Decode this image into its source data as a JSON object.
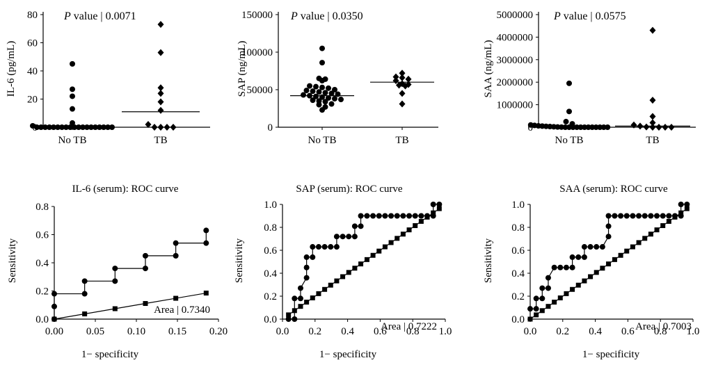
{
  "chart_data": [
    {
      "type": "scatter",
      "panel": "scatter-il6",
      "annotation": "value | 0.0071",
      "annotation_italic": "P",
      "ylabel": "IL-6 (pg/mL)",
      "ylim": [
        0,
        80
      ],
      "yticks": [
        0,
        20,
        40,
        60,
        80
      ],
      "categories": [
        "No TB",
        "TB"
      ],
      "groups": [
        {
          "category": "No TB",
          "marker": "circle",
          "median": 0,
          "values": [
            45,
            27,
            22,
            13,
            3,
            1,
            0,
            0,
            0,
            0,
            0,
            0,
            0,
            0,
            0,
            0,
            0,
            0,
            0,
            0,
            0,
            0,
            0,
            0,
            0
          ]
        },
        {
          "category": "TB",
          "marker": "diamond",
          "median": 11,
          "values": [
            73,
            53,
            28,
            24,
            18,
            12,
            2,
            0,
            0,
            0,
            0
          ]
        }
      ]
    },
    {
      "type": "scatter",
      "panel": "scatter-sap",
      "annotation": "value | 0.0350",
      "annotation_italic": "P",
      "ylabel": "SAP (ng/mL)",
      "ylim": [
        0,
        150000
      ],
      "yticks": [
        0,
        50000,
        100000,
        150000
      ],
      "categories": [
        "No TB",
        "TB"
      ],
      "groups": [
        {
          "category": "No TB",
          "marker": "circle",
          "median": 42000,
          "values": [
            105000,
            86000,
            65000,
            64000,
            62000,
            55000,
            54000,
            53000,
            52000,
            50000,
            49000,
            48000,
            47000,
            46000,
            45000,
            44000,
            43000,
            42000,
            41000,
            40000,
            39000,
            38000,
            37000,
            36000,
            35000,
            34000,
            31000,
            30000,
            27000,
            23000
          ]
        },
        {
          "category": "TB",
          "marker": "diamond",
          "median": 60000,
          "values": [
            72000,
            67000,
            66000,
            64000,
            62000,
            58000,
            57000,
            56000,
            55000,
            45000,
            31000
          ]
        }
      ]
    },
    {
      "type": "scatter",
      "panel": "scatter-saa",
      "annotation": "value | 0.0575",
      "annotation_italic": "P",
      "ylabel": "SAA (ng/mL)",
      "ylim": [
        0,
        5000000
      ],
      "yticks": [
        0,
        1000000,
        2000000,
        3000000,
        4000000,
        5000000
      ],
      "categories": [
        "No TB",
        "TB"
      ],
      "groups": [
        {
          "category": "No TB",
          "marker": "circle",
          "median": 0,
          "values": [
            1950000,
            700000,
            250000,
            150000,
            100000,
            80000,
            60000,
            50000,
            40000,
            30000,
            20000,
            10000,
            5000,
            0,
            0,
            0,
            0,
            0,
            0,
            0,
            0,
            0,
            0,
            0,
            0
          ]
        },
        {
          "category": "TB",
          "marker": "diamond",
          "median": 50000,
          "values": [
            4300000,
            1200000,
            480000,
            200000,
            100000,
            50000,
            10000,
            0,
            0,
            0,
            0
          ]
        }
      ]
    },
    {
      "type": "line",
      "panel": "roc-il6",
      "title": "IL-6 (serum): ROC curve",
      "xlabel": "1− specificity",
      "ylabel": "Sensitivity",
      "xlim": [
        0,
        0.2
      ],
      "ylim": [
        0,
        0.8
      ],
      "xticks": [
        "0.00",
        "0.05",
        "0.10",
        "0.15",
        "0.20"
      ],
      "yticks": [
        "0.0",
        "0.2",
        "0.4",
        "0.6",
        "0.8"
      ],
      "area_label": "Area | 0.7340",
      "series": [
        {
          "marker": "circle",
          "x": [
            0,
            0,
            0,
            0.037,
            0.037,
            0.074,
            0.074,
            0.111,
            0.111,
            0.148,
            0.148,
            0.185,
            0.185
          ],
          "y": [
            0,
            0.09,
            0.18,
            0.18,
            0.27,
            0.27,
            0.36,
            0.36,
            0.45,
            0.45,
            0.54,
            0.54,
            0.63
          ]
        },
        {
          "marker": "square",
          "x": [
            0,
            0.037,
            0.074,
            0.111,
            0.148,
            0.185
          ],
          "y": [
            0,
            0.037,
            0.074,
            0.111,
            0.148,
            0.185
          ]
        }
      ]
    },
    {
      "type": "line",
      "panel": "roc-sap",
      "title": "SAP (serum): ROC curve",
      "xlabel": "1− specificity",
      "ylabel": "Sensitivity",
      "xlim": [
        0,
        1
      ],
      "ylim": [
        0,
        1
      ],
      "xticks": [
        "0.0",
        "0.2",
        "0.4",
        "0.6",
        "0.8",
        "1.0"
      ],
      "yticks": [
        "0.0",
        "0.2",
        "0.4",
        "0.6",
        "0.8",
        "1.0"
      ],
      "area_label": "Area | 0.7222",
      "series": [
        {
          "marker": "circle",
          "x": [
            0.037,
            0.074,
            0.074,
            0.111,
            0.111,
            0.148,
            0.148,
            0.148,
            0.185,
            0.185,
            0.222,
            0.259,
            0.296,
            0.333,
            0.333,
            0.37,
            0.407,
            0.444,
            0.444,
            0.481,
            0.481,
            0.519,
            0.556,
            0.593,
            0.63,
            0.667,
            0.704,
            0.741,
            0.778,
            0.815,
            0.852,
            0.889,
            0.926,
            0.926,
            0.963
          ],
          "y": [
            0,
            0,
            0.18,
            0.18,
            0.27,
            0.36,
            0.45,
            0.54,
            0.54,
            0.63,
            0.63,
            0.63,
            0.63,
            0.63,
            0.72,
            0.72,
            0.72,
            0.72,
            0.81,
            0.81,
            0.9,
            0.9,
            0.9,
            0.9,
            0.9,
            0.9,
            0.9,
            0.9,
            0.9,
            0.9,
            0.9,
            0.9,
            0.9,
            1.0,
            1.0
          ]
        },
        {
          "marker": "square",
          "x": [
            0.037,
            0.074,
            0.111,
            0.148,
            0.185,
            0.222,
            0.259,
            0.296,
            0.333,
            0.37,
            0.407,
            0.444,
            0.481,
            0.519,
            0.556,
            0.593,
            0.63,
            0.667,
            0.704,
            0.741,
            0.778,
            0.815,
            0.852,
            0.889,
            0.926,
            0.963
          ],
          "y": [
            0.037,
            0.074,
            0.111,
            0.148,
            0.185,
            0.222,
            0.259,
            0.296,
            0.333,
            0.37,
            0.407,
            0.444,
            0.481,
            0.519,
            0.556,
            0.593,
            0.63,
            0.667,
            0.704,
            0.741,
            0.778,
            0.815,
            0.852,
            0.889,
            0.926,
            0.963
          ]
        }
      ]
    },
    {
      "type": "line",
      "panel": "roc-saa",
      "title": "SAA (serum): ROC curve",
      "xlabel": "1− specificity",
      "ylabel": "Sensitivity",
      "xlim": [
        0,
        1
      ],
      "ylim": [
        0,
        1
      ],
      "xticks": [
        "0.0",
        "0.2",
        "0.4",
        "0.6",
        "0.8",
        "1.0"
      ],
      "yticks": [
        "0.0",
        "0.2",
        "0.4",
        "0.6",
        "0.8",
        "1.0"
      ],
      "area_label": "Area | 0.7003",
      "series": [
        {
          "marker": "circle",
          "x": [
            0,
            0.037,
            0.037,
            0.074,
            0.074,
            0.111,
            0.111,
            0.148,
            0.185,
            0.222,
            0.259,
            0.259,
            0.296,
            0.333,
            0.333,
            0.37,
            0.407,
            0.444,
            0.481,
            0.481,
            0.481,
            0.519,
            0.556,
            0.593,
            0.63,
            0.667,
            0.704,
            0.741,
            0.778,
            0.815,
            0.852,
            0.889,
            0.926,
            0.926,
            0.963
          ],
          "y": [
            0.09,
            0.09,
            0.18,
            0.18,
            0.27,
            0.27,
            0.36,
            0.45,
            0.45,
            0.45,
            0.45,
            0.54,
            0.54,
            0.54,
            0.63,
            0.63,
            0.63,
            0.63,
            0.72,
            0.81,
            0.9,
            0.9,
            0.9,
            0.9,
            0.9,
            0.9,
            0.9,
            0.9,
            0.9,
            0.9,
            0.9,
            0.9,
            0.9,
            1.0,
            1.0
          ]
        },
        {
          "marker": "square",
          "x": [
            0,
            0.037,
            0.074,
            0.111,
            0.148,
            0.185,
            0.222,
            0.259,
            0.296,
            0.333,
            0.37,
            0.407,
            0.444,
            0.481,
            0.519,
            0.556,
            0.593,
            0.63,
            0.667,
            0.704,
            0.741,
            0.778,
            0.815,
            0.852,
            0.889,
            0.926,
            0.963
          ],
          "y": [
            0,
            0.037,
            0.074,
            0.111,
            0.148,
            0.185,
            0.222,
            0.259,
            0.296,
            0.333,
            0.37,
            0.407,
            0.444,
            0.481,
            0.519,
            0.556,
            0.593,
            0.63,
            0.667,
            0.704,
            0.741,
            0.778,
            0.815,
            0.852,
            0.889,
            0.926,
            0.963
          ]
        }
      ]
    }
  ]
}
